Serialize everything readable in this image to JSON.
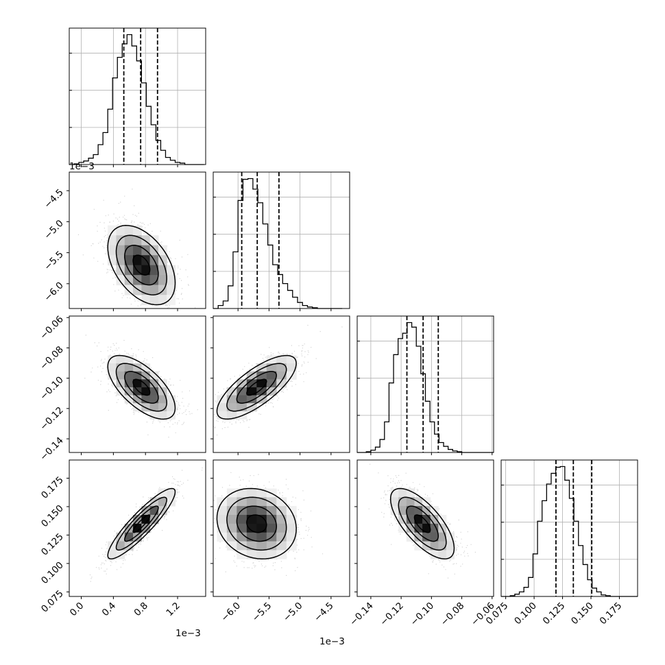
{
  "chart_data": {
    "type": "corner",
    "parameters": [
      {
        "range": [
          -0.00015,
          0.00155
        ],
        "ticks": [
          0.0,
          0.0004,
          0.0008,
          0.0012
        ],
        "tick_labels": [
          "0.0",
          "0.4",
          "0.8",
          "1.2"
        ],
        "offset": "1e−3"
      },
      {
        "range": [
          -0.0064,
          -0.0042
        ],
        "ticks": [
          -0.006,
          -0.0055,
          -0.005,
          -0.0045
        ],
        "tick_labels": [
          "−6.0",
          "−5.5",
          "−5.0",
          "−4.5"
        ],
        "offset": "1e−3"
      },
      {
        "range": [
          -0.149,
          -0.059
        ],
        "ticks": [
          -0.14,
          -0.12,
          -0.1,
          -0.08,
          -0.06
        ],
        "tick_labels": [
          "−0.14",
          "−0.12",
          "−0.10",
          "−0.08",
          "−0.06"
        ],
        "offset": ""
      },
      {
        "range": [
          0.071,
          0.191
        ],
        "ticks": [
          0.075,
          0.1,
          0.125,
          0.15,
          0.175
        ],
        "tick_labels": [
          "0.075",
          "0.100",
          "0.125",
          "0.150",
          "0.175"
        ],
        "offset": ""
      }
    ],
    "marginals": [
      {
        "edges": [
          -0.00015,
          -9e-05,
          -3e-05,
          3e-05,
          9e-05,
          0.00015,
          0.00021,
          0.00027,
          0.00033,
          0.00039,
          0.00045,
          0.00051,
          0.00057,
          0.00063,
          0.00069,
          0.00075,
          0.00081,
          0.00087,
          0.00093,
          0.00099,
          0.00105,
          0.00111,
          0.00117,
          0.00123,
          0.00129,
          0.00135,
          0.00141,
          0.00147,
          0.00153
        ],
        "counts": [
          0,
          1,
          3,
          5,
          9,
          14,
          28,
          45,
          78,
          122,
          151,
          170,
          183,
          167,
          146,
          115,
          82,
          56,
          34,
          20,
          10,
          6,
          3,
          2,
          0,
          0,
          0,
          0
        ],
        "quantiles": [
          0.00053,
          0.00074,
          0.00095
        ]
      },
      {
        "edges": [
          -0.0064,
          -0.00632,
          -0.00624,
          -0.00616,
          -0.00608,
          -0.006,
          -0.00592,
          -0.00584,
          -0.00576,
          -0.00568,
          -0.0056,
          -0.00552,
          -0.00544,
          -0.00536,
          -0.00528,
          -0.0052,
          -0.00512,
          -0.00504,
          -0.00496,
          -0.00488,
          -0.0048,
          -0.00472,
          -0.00464,
          -0.00456,
          -0.00448,
          -0.0044,
          -0.00432
        ],
        "counts": [
          0,
          4,
          10,
          30,
          75,
          143,
          171,
          172,
          158,
          140,
          112,
          84,
          58,
          45,
          33,
          24,
          15,
          8,
          4,
          2,
          1,
          0,
          0,
          0,
          0,
          0
        ],
        "quantiles": [
          -0.00594,
          -0.00569,
          -0.00534
        ]
      },
      {
        "edges": [
          -0.149,
          -0.146,
          -0.143,
          -0.14,
          -0.137,
          -0.134,
          -0.131,
          -0.128,
          -0.125,
          -0.122,
          -0.119,
          -0.116,
          -0.113,
          -0.11,
          -0.107,
          -0.104,
          -0.101,
          -0.098,
          -0.095,
          -0.092,
          -0.089,
          -0.086,
          -0.083,
          -0.08,
          -0.077,
          -0.074,
          -0.071,
          -0.068,
          -0.065,
          -0.062,
          -0.059
        ],
        "counts": [
          0,
          0,
          1,
          3,
          7,
          17,
          40,
          91,
          128,
          149,
          156,
          170,
          164,
          139,
          103,
          67,
          40,
          24,
          13,
          8,
          4,
          2,
          1,
          0,
          0,
          0,
          0,
          0,
          0,
          0
        ],
        "quantiles": [
          -0.1162,
          -0.1055,
          -0.0955
        ]
      },
      {
        "edges": [
          0.071,
          0.075,
          0.079,
          0.083,
          0.087,
          0.091,
          0.095,
          0.099,
          0.103,
          0.107,
          0.111,
          0.115,
          0.119,
          0.123,
          0.127,
          0.131,
          0.135,
          0.139,
          0.143,
          0.147,
          0.151,
          0.155,
          0.159,
          0.163,
          0.167,
          0.171,
          0.175,
          0.179,
          0.183,
          0.187,
          0.191
        ],
        "counts": [
          0,
          0,
          1,
          3,
          6,
          12,
          25,
          56,
          99,
          126,
          148,
          162,
          170,
          171,
          153,
          129,
          99,
          67,
          42,
          22,
          11,
          6,
          2,
          1,
          0,
          0,
          0,
          0,
          0,
          0
        ],
        "quantiles": [
          0.1192,
          0.1345,
          0.1507
        ]
      }
    ],
    "pairs": [
      {
        "x": 0,
        "y": 1,
        "mean": [
          0.00075,
          -0.0057
        ],
        "std": [
          0.00021,
          0.00032
        ],
        "rho": -0.45
      },
      {
        "x": 0,
        "y": 2,
        "mean": [
          0.00075,
          -0.106
        ],
        "std": [
          0.00021,
          0.0105
        ],
        "rho": -0.65
      },
      {
        "x": 1,
        "y": 2,
        "mean": [
          -0.0057,
          -0.106
        ],
        "std": [
          0.00032,
          0.0105
        ],
        "rho": 0.75
      },
      {
        "x": 0,
        "y": 3,
        "mean": [
          0.00075,
          0.135
        ],
        "std": [
          0.00021,
          0.0155
        ],
        "rho": 0.9
      },
      {
        "x": 1,
        "y": 3,
        "mean": [
          -0.0057,
          0.135
        ],
        "std": [
          0.00032,
          0.0155
        ],
        "rho": -0.15
      },
      {
        "x": 2,
        "y": 3,
        "mean": [
          -0.106,
          0.135
        ],
        "std": [
          0.0105,
          0.0155
        ],
        "rho": -0.7
      }
    ],
    "contour_levels": [
      0.5,
      1.0,
      1.5,
      2.0
    ],
    "grid": true,
    "colors": {
      "line": "#000000",
      "grid": "#b0b0b0",
      "points": "#808080"
    }
  }
}
